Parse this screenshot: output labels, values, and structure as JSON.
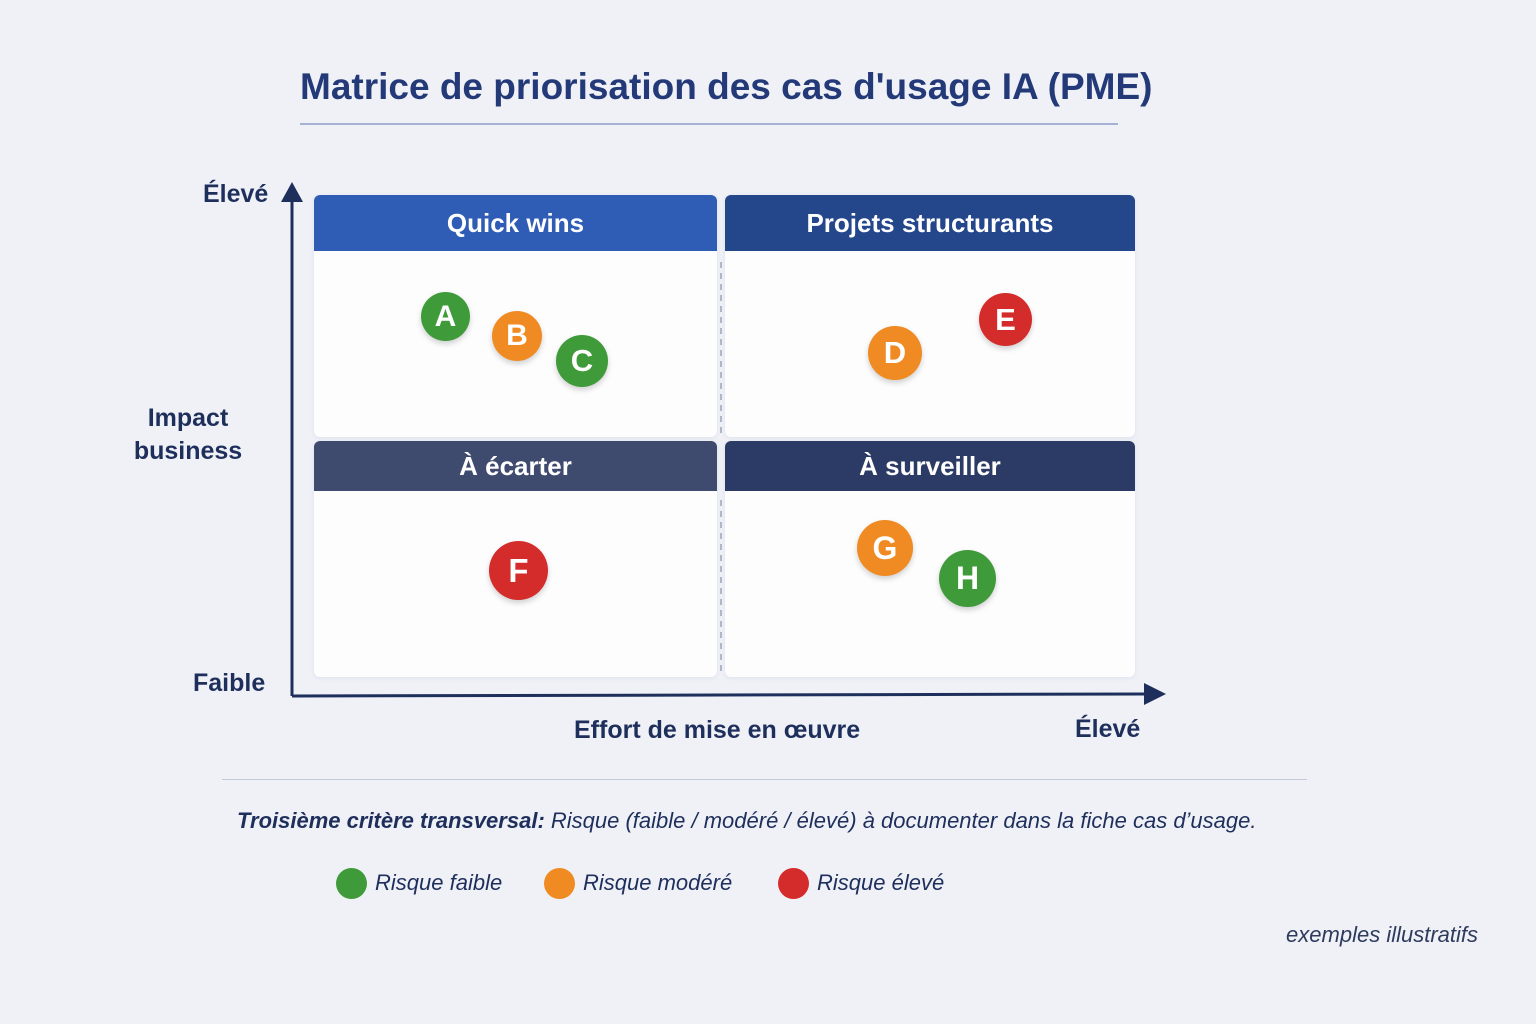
{
  "title": "Matrice de priorisation des cas d'usage IA (PME)",
  "axes": {
    "y_name_line1": "Impact",
    "y_name_line2": "business",
    "y_high": "Élevé",
    "y_low": "Faible",
    "x_name": "Effort de mise en œuvre",
    "x_high": "Élevé"
  },
  "quadrants": [
    {
      "label": "Quick wins",
      "color": "#2f5db5"
    },
    {
      "label": "Projets structurants",
      "color": "#24468a"
    },
    {
      "label": "À écarter",
      "color": "#3e4a6e"
    },
    {
      "label": "À surveiller",
      "color": "#2b3b66"
    }
  ],
  "cases": [
    {
      "label": "A",
      "risk": "faible"
    },
    {
      "label": "B",
      "risk": "modéré"
    },
    {
      "label": "C",
      "risk": "faible"
    },
    {
      "label": "D",
      "risk": "modéré"
    },
    {
      "label": "E",
      "risk": "élevé"
    },
    {
      "label": "F",
      "risk": "élevé"
    },
    {
      "label": "G",
      "risk": "modéré"
    },
    {
      "label": "H",
      "risk": "faible"
    }
  ],
  "risk_colors": {
    "faible": "#3f9a3a",
    "modéré": "#f08a22",
    "élevé": "#d42b2b"
  },
  "note": {
    "strong": "Troisième critère transversal:",
    "text": " Risque (faible / modéré / élevé) à documenter dans la fiche cas d’usage."
  },
  "legend": [
    {
      "label": "Risque faible",
      "color": "#3f9a3a"
    },
    {
      "label": "Risque modéré",
      "color": "#f08a22"
    },
    {
      "label": "Risque élevé",
      "color": "#d42b2b"
    }
  ],
  "footnote": "exemples illustratifs"
}
